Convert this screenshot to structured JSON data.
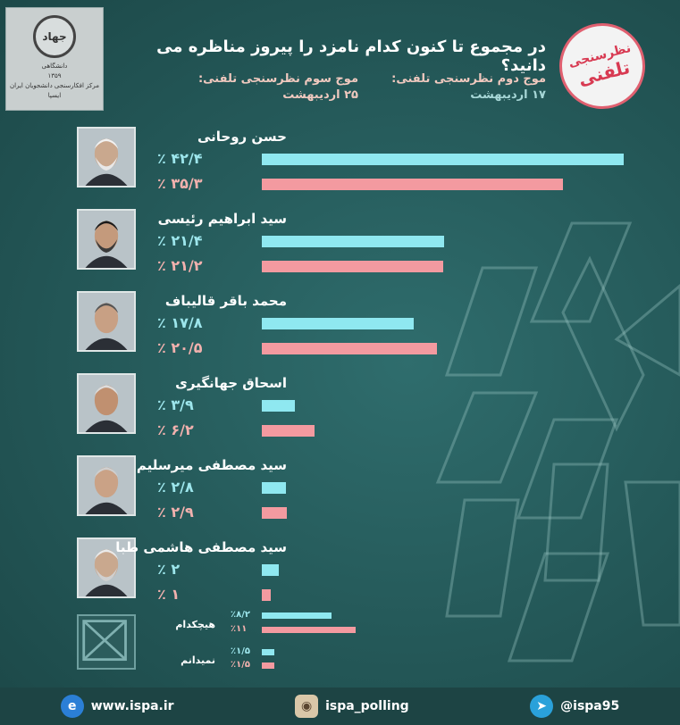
{
  "header": {
    "title": "در مجموع تا کنون کدام نامزد را پیروز مناظره می دانید؟",
    "stamp_line1": "نظرسنجی",
    "stamp_line2": "تلفنی",
    "wave2_label": "موج دوم نظرسنجی تلفنی:",
    "wave2_date": "۱۷ اردیبهشت",
    "wave3_label": "موج سوم نظرسنجی تلفنی:",
    "wave3_date": "۲۵ اردیبهشت"
  },
  "logo": {
    "emblem_text": "جهاد",
    "line1": "دانشگاهی",
    "line2": "۱۳۵۹",
    "line3": "مرکز افکارسنجی دانشجویان ایران",
    "line4": "ایسپا"
  },
  "colors": {
    "wave2": "#8fe8f0",
    "wave3": "#f39aa0",
    "background": "#245858"
  },
  "chart_data": {
    "type": "bar",
    "orientation": "horizontal",
    "title": "در مجموع تا کنون کدام نامزد را پیروز مناظره می دانید؟",
    "categories": [
      "حسن روحانی",
      "سید ابراهیم رئیسی",
      "محمد باقر قالیباف",
      "اسحاق جهانگیری",
      "سید مصطفی میرسلیم",
      "سید مصطفی هاشمی طبا",
      "هیچکدام",
      "نمیدانم"
    ],
    "series": [
      {
        "name": "موج دوم نظرسنجی تلفنی",
        "values": [
          42.4,
          21.4,
          17.8,
          3.9,
          2.8,
          2,
          8.2,
          1.5
        ],
        "labels": [
          "٪ ۴۲/۴",
          "٪ ۲۱/۴",
          "٪ ۱۷/۸",
          "٪ ۳/۹",
          "٪ ۲/۸",
          "٪ ۲",
          "٪۸/۲",
          "٪۱/۵"
        ]
      },
      {
        "name": "موج سوم نظرسنجی تلفنی",
        "values": [
          35.3,
          21.2,
          20.5,
          6.2,
          2.9,
          1,
          11,
          1.5
        ],
        "labels": [
          "٪ ۳۵/۳",
          "٪ ۲۱/۲",
          "٪ ۲۰/۵",
          "٪ ۶/۲",
          "٪ ۲/۹",
          "٪ ۱",
          "٪۱۱",
          "٪۱/۵"
        ]
      }
    ]
  },
  "footer": {
    "website": "www.ispa.ir",
    "instagram": "ispa_polling",
    "telegram": "@ispa95",
    "website_icon": "ie-icon",
    "instagram_icon": "instagram-icon",
    "telegram_icon": "telegram-icon"
  }
}
